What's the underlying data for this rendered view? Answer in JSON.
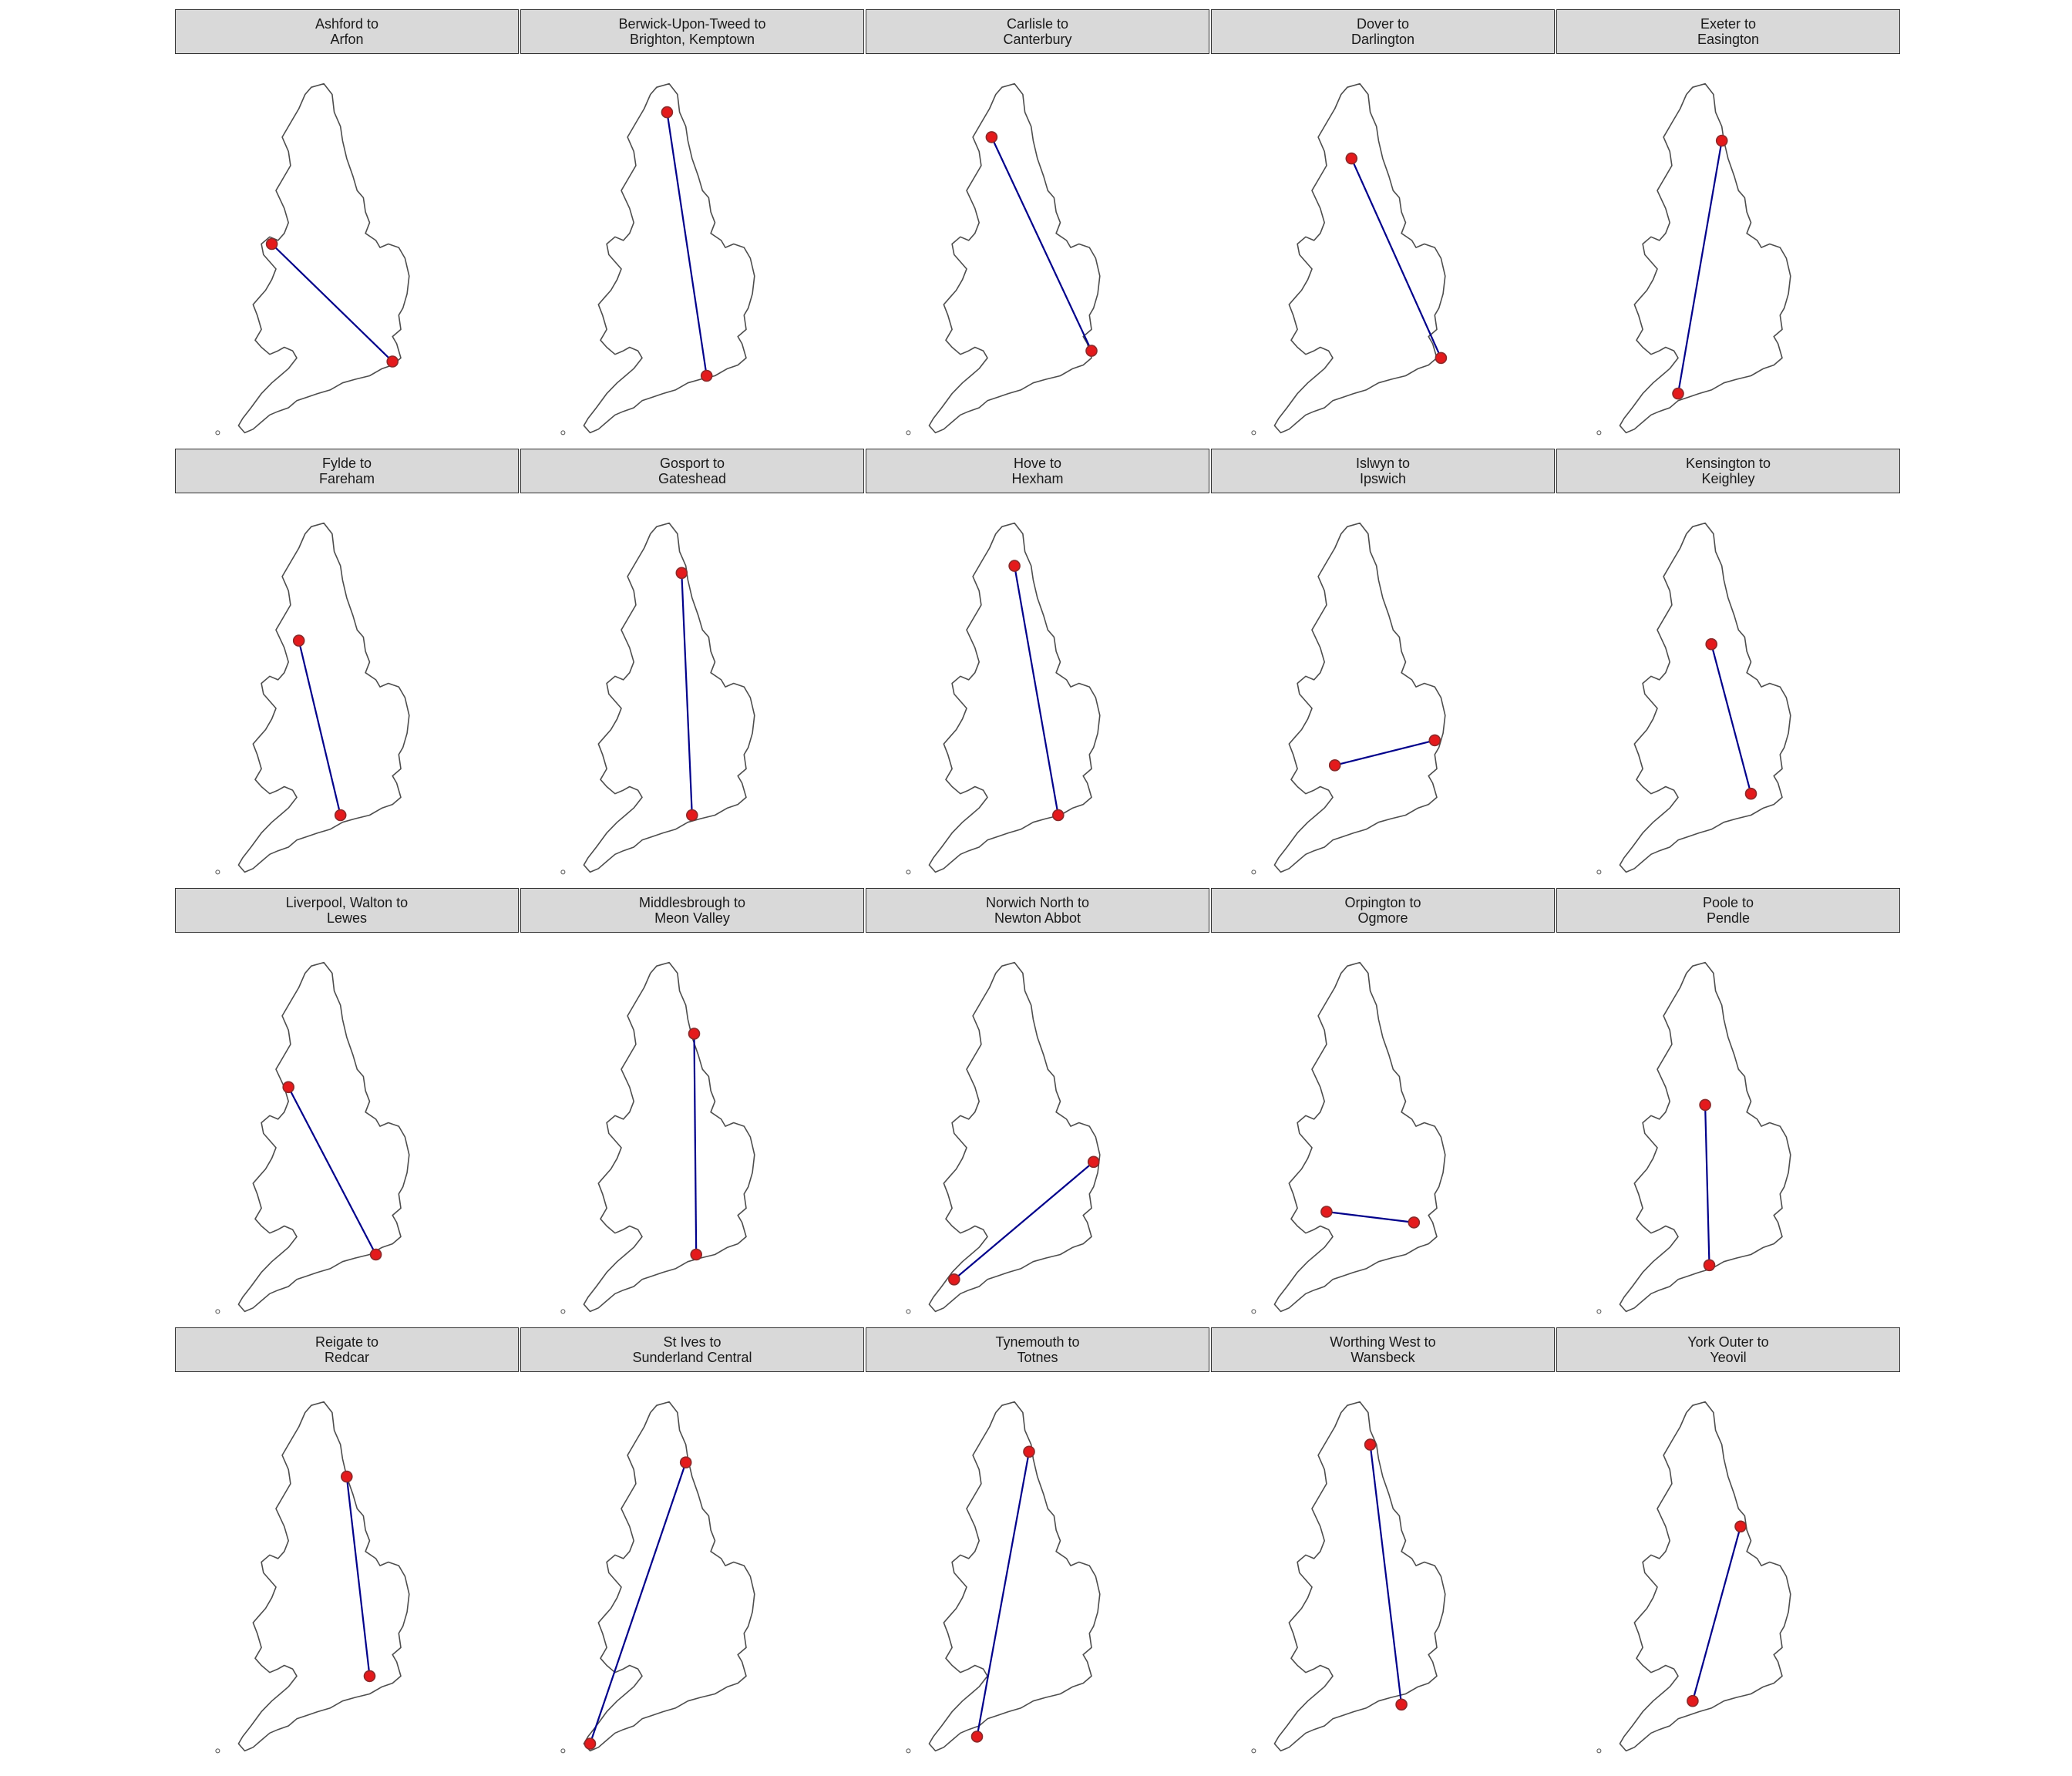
{
  "colors": {
    "strip_bg": "#d9d9d9",
    "route": "#00008b",
    "point": "#e41a1c",
    "coast": "#4d4d4d"
  },
  "panels": [
    {
      "from": "Ashford to",
      "to": "Arfon",
      "a": [
        0.28,
        0.46
      ],
      "b": [
        0.86,
        0.79
      ]
    },
    {
      "from": "Berwick-Upon-Tweed to",
      "to": "Brighton, Kemptown",
      "a": [
        0.52,
        0.09
      ],
      "b": [
        0.71,
        0.83
      ]
    },
    {
      "from": "Carlisle to",
      "to": "Canterbury",
      "a": [
        0.42,
        0.16
      ],
      "b": [
        0.9,
        0.76
      ]
    },
    {
      "from": "Dover to",
      "to": "Darlington",
      "a": [
        0.49,
        0.22
      ],
      "b": [
        0.92,
        0.78
      ]
    },
    {
      "from": "Exeter to",
      "to": "Easington",
      "a": [
        0.61,
        0.17
      ],
      "b": [
        0.4,
        0.88
      ]
    },
    {
      "from": "Fylde to",
      "to": "Fareham",
      "a": [
        0.41,
        0.34
      ],
      "b": [
        0.61,
        0.83
      ]
    },
    {
      "from": "Gosport to",
      "to": "Gateshead",
      "a": [
        0.59,
        0.15
      ],
      "b": [
        0.64,
        0.83
      ]
    },
    {
      "from": "Hove to",
      "to": "Hexham",
      "a": [
        0.53,
        0.13
      ],
      "b": [
        0.74,
        0.83
      ]
    },
    {
      "from": "Islwyn to",
      "to": "Ipswich",
      "a": [
        0.41,
        0.69
      ],
      "b": [
        0.89,
        0.62
      ]
    },
    {
      "from": "Kensington to",
      "to": "Keighley",
      "a": [
        0.56,
        0.35
      ],
      "b": [
        0.75,
        0.77
      ]
    },
    {
      "from": "Liverpool, Walton to",
      "to": "Lewes",
      "a": [
        0.36,
        0.36
      ],
      "b": [
        0.78,
        0.83
      ]
    },
    {
      "from": "Middlesbrough to",
      "to": "Meon Valley",
      "a": [
        0.65,
        0.21
      ],
      "b": [
        0.66,
        0.83
      ]
    },
    {
      "from": "Norwich North to",
      "to": "Newton Abbot",
      "a": [
        0.91,
        0.57
      ],
      "b": [
        0.24,
        0.9
      ]
    },
    {
      "from": "Orpington to",
      "to": "Ogmore",
      "a": [
        0.79,
        0.74
      ],
      "b": [
        0.37,
        0.71
      ]
    },
    {
      "from": "Poole to",
      "to": "Pendle",
      "a": [
        0.53,
        0.41
      ],
      "b": [
        0.55,
        0.86
      ]
    },
    {
      "from": "Reigate to",
      "to": "Redcar",
      "a": [
        0.75,
        0.78
      ],
      "b": [
        0.64,
        0.22
      ]
    },
    {
      "from": "St Ives to",
      "to": "Sunderland Central",
      "a": [
        0.15,
        0.97
      ],
      "b": [
        0.61,
        0.18
      ]
    },
    {
      "from": "Tynemouth to",
      "to": "Totnes",
      "a": [
        0.6,
        0.15
      ],
      "b": [
        0.35,
        0.95
      ]
    },
    {
      "from": "Worthing West to",
      "to": "Wansbeck",
      "a": [
        0.73,
        0.86
      ],
      "b": [
        0.58,
        0.13
      ]
    },
    {
      "from": "York Outer to",
      "to": "Yeovil",
      "a": [
        0.7,
        0.36
      ],
      "b": [
        0.47,
        0.85
      ]
    }
  ]
}
